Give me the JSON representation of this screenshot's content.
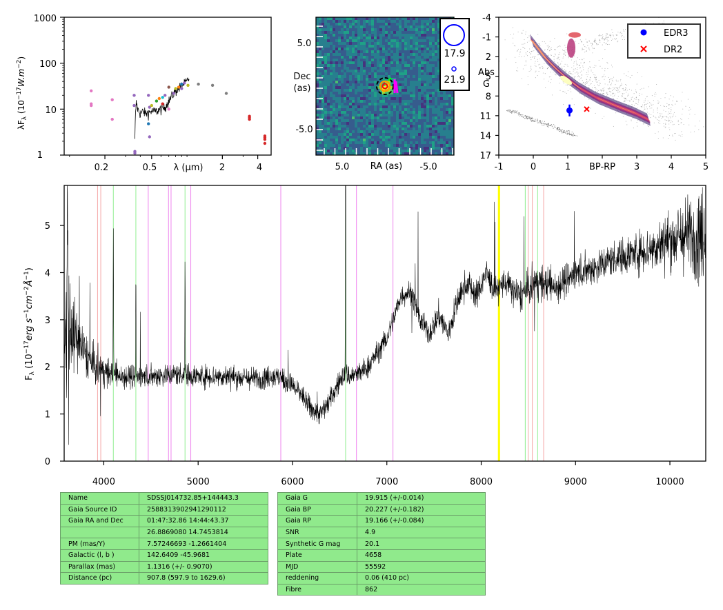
{
  "sed_panel": {
    "ylabel": "λF",
    "ylabel_sub": "λ",
    "ylabel_units": "(10",
    "ylabel_exp": "−17",
    "ylabel_units2": "W.m",
    "ylabel_exp2": "−2",
    "ylabel_close": ")",
    "xlabel": "λ (μm)",
    "ytick_labels": [
      "1",
      "10",
      "100",
      "1000"
    ],
    "xtick_labels": [
      "0.2",
      "0.5",
      "2",
      "4"
    ]
  },
  "image_panel": {
    "xlabel": "RA (as)",
    "ylabel_line1": "Dec",
    "ylabel_line2": "(as)",
    "xtick_labels": [
      "5.0",
      "-5.0"
    ],
    "ytick_labels": [
      "5.0",
      "-5.0"
    ],
    "legend_labels": [
      "17.9",
      "21.9"
    ]
  },
  "hrd_panel": {
    "xlabel": "BP-RP",
    "ylabel_line1": "Abs",
    "ylabel_line2": "G",
    "xtick_labels": [
      "-1",
      "0",
      "1",
      "3",
      "4",
      "5"
    ],
    "ytick_labels": [
      "-4",
      "-1",
      "2",
      "5",
      "8",
      "11",
      "14",
      "17"
    ],
    "legend": [
      {
        "label": "EDR3",
        "color": "#0000ff",
        "marker": "circle"
      },
      {
        "label": "DR2",
        "color": "#ff0000",
        "marker": "x"
      }
    ]
  },
  "spectrum_panel": {
    "ylabel": "F",
    "ylabel_sub": "λ",
    "ylabel_units": "(10",
    "ylabel_exp": "−17",
    "ylabel_units2": "erg s",
    "ylabel_exp2": "−1",
    "ylabel_units3": "cm",
    "ylabel_exp3": "−2",
    "ylabel_units4": "Å",
    "ylabel_exp4": "−1",
    "ylabel_close": ")",
    "xtick_labels": [
      "4000",
      "5000",
      "6000",
      "7000",
      "8000",
      "9000",
      "10000"
    ],
    "ytick_labels": [
      "0",
      "1",
      "2",
      "3",
      "4",
      "5"
    ]
  },
  "chart_data": [
    {
      "type": "scatter",
      "panel": "sed",
      "xlabel": "λ (μm)",
      "ylabel": "λFλ (10^-17 W.m^-2)",
      "xscale": "log",
      "yscale": "log",
      "xlim": [
        0.09,
        5.2
      ],
      "ylim": [
        1,
        1000
      ],
      "points": [
        {
          "x": 0.153,
          "y": 25,
          "color": "#e377c2"
        },
        {
          "x": 0.153,
          "y": 13,
          "color": "#e377c2"
        },
        {
          "x": 0.153,
          "y": 12,
          "color": "#e377c2"
        },
        {
          "x": 0.231,
          "y": 16,
          "color": "#e377c2"
        },
        {
          "x": 0.231,
          "y": 6,
          "color": "#e377c2"
        },
        {
          "x": 0.355,
          "y": 20,
          "color": "#9467bd"
        },
        {
          "x": 0.355,
          "y": 12,
          "color": "#9467bd"
        },
        {
          "x": 0.36,
          "y": 1.2,
          "color": "#9467bd"
        },
        {
          "x": 0.36,
          "y": 1.1,
          "color": "#9467bd"
        },
        {
          "x": 0.47,
          "y": 20,
          "color": "#9467bd"
        },
        {
          "x": 0.48,
          "y": 11,
          "color": "#9467bd"
        },
        {
          "x": 0.47,
          "y": 4.8,
          "color": "#1f77b4"
        },
        {
          "x": 0.48,
          "y": 2.5,
          "color": "#9467bd"
        },
        {
          "x": 0.5,
          "y": 12,
          "color": "#bcbd22"
        },
        {
          "x": 0.55,
          "y": 15,
          "color": "#2ca02c"
        },
        {
          "x": 0.58,
          "y": 17,
          "color": "#ff7f0e"
        },
        {
          "x": 0.62,
          "y": 18,
          "color": "#17becf"
        },
        {
          "x": 0.62,
          "y": 13,
          "color": "#d62728"
        },
        {
          "x": 0.65,
          "y": 20,
          "color": "#9467bd"
        },
        {
          "x": 0.7,
          "y": 30,
          "color": "#8c564b"
        },
        {
          "x": 0.7,
          "y": 10,
          "color": "#e377c2"
        },
        {
          "x": 0.75,
          "y": 20,
          "color": "#7f7f7f"
        },
        {
          "x": 0.77,
          "y": 22,
          "color": "#9467bd"
        },
        {
          "x": 0.8,
          "y": 28,
          "color": "#bcbd22"
        },
        {
          "x": 0.85,
          "y": 30,
          "color": "#ff7f0e"
        },
        {
          "x": 0.9,
          "y": 35,
          "color": "#1f77b4"
        },
        {
          "x": 0.9,
          "y": 28,
          "color": "#9467bd"
        },
        {
          "x": 0.95,
          "y": 37,
          "color": "#9467bd"
        },
        {
          "x": 1.02,
          "y": 33,
          "color": "#bcbd22"
        },
        {
          "x": 1.25,
          "y": 35,
          "color": "#7f7f7f"
        },
        {
          "x": 1.65,
          "y": 33,
          "color": "#7f7f7f"
        },
        {
          "x": 2.16,
          "y": 22,
          "color": "#7f7f7f"
        },
        {
          "x": 3.4,
          "y": 7,
          "color": "#d62728"
        },
        {
          "x": 3.4,
          "y": 6.5,
          "color": "#d62728"
        },
        {
          "x": 3.4,
          "y": 6.0,
          "color": "#d62728"
        },
        {
          "x": 4.6,
          "y": 2.6,
          "color": "#d62728"
        },
        {
          "x": 4.6,
          "y": 2.4,
          "color": "#d62728"
        },
        {
          "x": 4.6,
          "y": 2.2,
          "color": "#d62728"
        },
        {
          "x": 4.6,
          "y": 1.8,
          "color": "#d62728"
        }
      ],
      "spectrum_line": {
        "x": [
          0.36,
          0.37,
          0.38,
          0.4,
          0.42,
          0.45,
          0.5,
          0.55,
          0.6,
          0.65,
          0.7,
          0.75,
          0.8,
          0.85,
          0.9,
          0.95,
          1.0,
          1.04
        ],
        "y": [
          2,
          14,
          10,
          8,
          9,
          8,
          9,
          9,
          10,
          11,
          15,
          20,
          25,
          28,
          33,
          36,
          40,
          48
        ]
      }
    },
    {
      "type": "heatmap",
      "panel": "image",
      "xlabel": "RA (as)",
      "ylabel": "Dec (as)",
      "xlim": [
        9.0,
        -9.0
      ],
      "ylim": [
        -9.0,
        9.0
      ],
      "sources": [
        {
          "ra": 0.0,
          "dec": 0.0
        }
      ],
      "legend": [
        {
          "label": "17.9",
          "size": "large"
        },
        {
          "label": "21.9",
          "size": "small"
        }
      ]
    },
    {
      "type": "scatter",
      "panel": "hrd",
      "xlabel": "BP-RP",
      "ylabel": "Abs G",
      "xlim": [
        -1,
        5
      ],
      "ylim": [
        17,
        -4
      ],
      "points": [
        {
          "name": "EDR3",
          "x": 1.05,
          "y": 10.2,
          "yerr": 0.9,
          "color": "#0000ff"
        },
        {
          "name": "DR2",
          "x": 1.55,
          "y": 10.0,
          "color": "#ff0000"
        }
      ],
      "legend": "top-right"
    },
    {
      "type": "line",
      "panel": "spectrum",
      "xlabel": "",
      "ylabel": "Fλ (10^-17 erg s^-1 cm^-2 Å^-1)",
      "xlim": [
        3580,
        10380
      ],
      "ylim": [
        0,
        5.85
      ],
      "anchor_x": [
        3580,
        3620,
        3700,
        3800,
        3900,
        4000,
        4200,
        4500,
        4800,
        5000,
        5300,
        5600,
        5800,
        5900,
        6000,
        6100,
        6200,
        6300,
        6400,
        6500,
        6560,
        6600,
        6700,
        6800,
        6900,
        7000,
        7100,
        7150,
        7250,
        7350,
        7450,
        7550,
        7650,
        7750,
        7850,
        7950,
        8050,
        8150,
        8250,
        8400,
        8600,
        8800,
        9000,
        9200,
        9400,
        9600,
        9800,
        10000,
        10200,
        10380
      ],
      "anchor_y": [
        3.0,
        3.0,
        2.6,
        2.3,
        2.0,
        1.9,
        1.8,
        1.8,
        1.85,
        1.8,
        1.8,
        1.75,
        1.8,
        1.75,
        1.6,
        1.4,
        1.1,
        1.0,
        1.3,
        1.7,
        1.9,
        1.8,
        1.85,
        2.0,
        2.3,
        2.6,
        3.2,
        3.5,
        3.6,
        3.0,
        2.7,
        3.1,
        2.7,
        3.4,
        3.8,
        3.5,
        4.0,
        3.6,
        3.8,
        3.5,
        3.8,
        3.7,
        4.0,
        4.1,
        4.3,
        4.4,
        4.5,
        4.7,
        4.8,
        4.8
      ],
      "noise": [
        0.8,
        0.8,
        0.6,
        0.4,
        0.35,
        0.25,
        0.22,
        0.2,
        0.2,
        0.2,
        0.2,
        0.2,
        0.2,
        0.2,
        0.2,
        0.2,
        0.2,
        0.2,
        0.2,
        0.2,
        0.2,
        0.2,
        0.2,
        0.2,
        0.2,
        0.2,
        0.2,
        0.2,
        0.2,
        0.2,
        0.2,
        0.25,
        0.25,
        0.25,
        0.25,
        0.25,
        0.25,
        0.25,
        0.25,
        0.3,
        0.3,
        0.3,
        0.3,
        0.3,
        0.3,
        0.35,
        0.4,
        0.5,
        0.7,
        0.9
      ],
      "emission_lines": [
        {
          "x": 4101,
          "height": 3.2
        },
        {
          "x": 4340,
          "height": 2.2
        },
        {
          "x": 4861,
          "height": 2.5
        },
        {
          "x": 6563,
          "height": 6.0
        }
      ],
      "reference_lines": [
        {
          "x": 3934,
          "color": "#f4a6a6"
        },
        {
          "x": 3968,
          "color": "#f4a6a6"
        },
        {
          "x": 4101,
          "color": "#90ee90"
        },
        {
          "x": 4340,
          "color": "#90ee90"
        },
        {
          "x": 4471,
          "color": "#ee82ee"
        },
        {
          "x": 4686,
          "color": "#ee82ee"
        },
        {
          "x": 4713,
          "color": "#ee82ee"
        },
        {
          "x": 4861,
          "color": "#90ee90"
        },
        {
          "x": 4922,
          "color": "#ee82ee"
        },
        {
          "x": 5876,
          "color": "#ee82ee"
        },
        {
          "x": 6563,
          "color": "#90ee90"
        },
        {
          "x": 6678,
          "color": "#ee82ee"
        },
        {
          "x": 7065,
          "color": "#ee82ee"
        },
        {
          "x": 8183,
          "color": "#ffff00"
        },
        {
          "x": 8195,
          "color": "#ffff00"
        },
        {
          "x": 8467,
          "color": "#90ee90"
        },
        {
          "x": 8498,
          "color": "#f4a6a6"
        },
        {
          "x": 8542,
          "color": "#f4a6a6"
        },
        {
          "x": 8598,
          "color": "#90ee90"
        },
        {
          "x": 8662,
          "color": "#f4a6a6"
        }
      ]
    },
    {
      "type": "table",
      "panel": "info-left",
      "rows": [
        [
          "Name",
          "SDSSJ014732.85+144443.3"
        ],
        [
          "Gaia Source ID",
          "2588313902941290112"
        ],
        [
          "Gaia RA and Dec",
          "01:47:32.86    14:44:43.37"
        ],
        [
          "",
          "26.8869080    14.7453814"
        ],
        [
          "PM (mas/Y)",
          "7.57246693    -1.2661404"
        ],
        [
          "Galactic (l, b )",
          "142.6409    -45.9681"
        ],
        [
          "Parallax (mas)",
          "1.1316 (+/- 0.9070)"
        ],
        [
          "Distance (pc)",
          "907.8 (597.9 to 1629.6)"
        ]
      ]
    },
    {
      "type": "table",
      "panel": "info-right",
      "rows": [
        [
          "Gaia G",
          "19.915 (+/-0.014)"
        ],
        [
          "Gaia BP",
          "20.227 (+/-0.182)"
        ],
        [
          "Gaia RP",
          "19.166 (+/-0.084)"
        ],
        [
          "SNR",
          "4.9"
        ],
        [
          "Synthetic G mag",
          "20.1"
        ],
        [
          "Plate",
          "4658"
        ],
        [
          "MJD",
          "55592"
        ],
        [
          "reddening",
          "0.06 (410 pc)"
        ],
        [
          "Fibre",
          "862"
        ]
      ]
    }
  ]
}
